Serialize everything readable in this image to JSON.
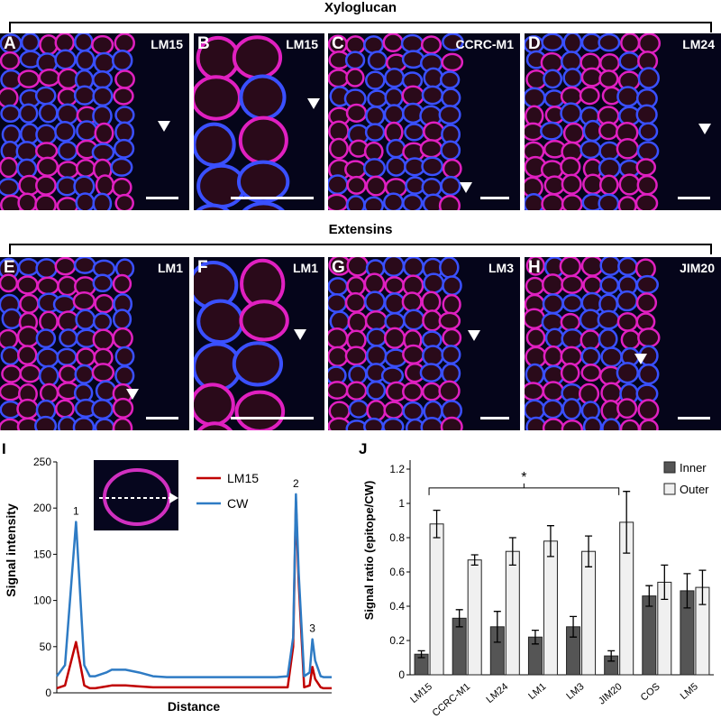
{
  "sections": {
    "xyloglucan": "Xyloglucan",
    "extensins": "Extensins"
  },
  "panels": [
    {
      "letter": "A",
      "antibody": "LM15"
    },
    {
      "letter": "B",
      "antibody": "LM15"
    },
    {
      "letter": "C",
      "antibody": "CCRC-M1"
    },
    {
      "letter": "D",
      "antibody": "LM24"
    },
    {
      "letter": "E",
      "antibody": "LM1"
    },
    {
      "letter": "F",
      "antibody": "LM1"
    },
    {
      "letter": "G",
      "antibody": "LM3"
    },
    {
      "letter": "H",
      "antibody": "JIM20"
    }
  ],
  "chart_data": [
    {
      "panel": "I",
      "type": "line",
      "xlabel": "Distance",
      "ylabel": "Signal intensity",
      "ylim": [
        0,
        250
      ],
      "yticks": [
        0,
        50,
        100,
        150,
        200,
        250
      ],
      "x": [
        0,
        0.03,
        0.07,
        0.1,
        0.12,
        0.14,
        0.18,
        0.2,
        0.25,
        0.3,
        0.35,
        0.4,
        0.5,
        0.6,
        0.7,
        0.75,
        0.8,
        0.84,
        0.86,
        0.87,
        0.88,
        0.9,
        0.92,
        0.93,
        0.94,
        0.96,
        0.97,
        0.98,
        1.0
      ],
      "series": [
        {
          "name": "LM15",
          "color": "#c00000",
          "values": [
            5,
            8,
            55,
            8,
            5,
            5,
            7,
            8,
            8,
            7,
            6,
            6,
            6,
            6,
            6,
            6,
            6,
            6,
            50,
            207,
            120,
            6,
            8,
            28,
            15,
            6,
            5,
            5,
            5
          ]
        },
        {
          "name": "CW",
          "color": "#2e7bc4",
          "values": [
            18,
            30,
            185,
            30,
            18,
            18,
            22,
            25,
            25,
            22,
            18,
            17,
            17,
            17,
            17,
            17,
            17,
            18,
            60,
            215,
            130,
            18,
            22,
            58,
            35,
            18,
            17,
            17,
            17
          ]
        }
      ],
      "peak_labels": [
        "1",
        "2",
        "3"
      ],
      "peak_at": [
        {
          "x": 0.07,
          "y": 185
        },
        {
          "x": 0.87,
          "y": 215
        },
        {
          "x": 0.93,
          "y": 58
        }
      ],
      "legend": "top-right"
    },
    {
      "panel": "J",
      "type": "bar",
      "ylabel": "Signal ratio (epitope/CW)",
      "ylim": [
        0,
        1.2
      ],
      "yticks": [
        "0",
        "0.2",
        "0.4",
        "0.6",
        "0.8",
        "1",
        "1.2"
      ],
      "categories": [
        "LM15",
        "CCRC-M1",
        "LM24",
        "LM1",
        "LM3",
        "JIM20",
        "COS",
        "LM5"
      ],
      "series": [
        {
          "name": "Inner",
          "color": "#555555",
          "values": [
            0.12,
            0.33,
            0.28,
            0.22,
            0.28,
            0.11,
            0.46,
            0.49
          ],
          "errors": [
            0.02,
            0.05,
            0.09,
            0.04,
            0.06,
            0.03,
            0.06,
            0.1
          ]
        },
        {
          "name": "Outer",
          "color": "#f0f0f0",
          "values": [
            0.88,
            0.67,
            0.72,
            0.78,
            0.72,
            0.89,
            0.54,
            0.51
          ],
          "errors": [
            0.08,
            0.03,
            0.08,
            0.09,
            0.09,
            0.18,
            0.1,
            0.1
          ]
        }
      ],
      "significance": "*",
      "legend": "top-right"
    }
  ]
}
